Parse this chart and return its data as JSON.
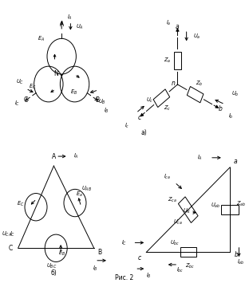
{
  "title": "Рис. 2",
  "background": "#ffffff",
  "label_a": "а)",
  "label_b": "б)"
}
